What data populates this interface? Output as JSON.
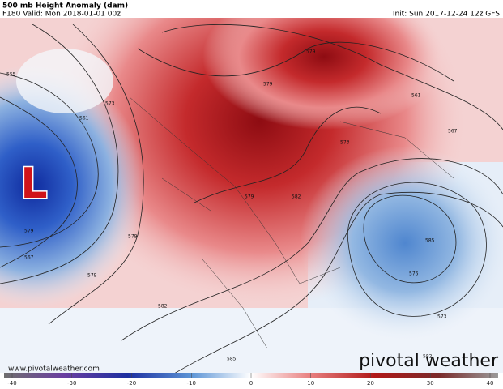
{
  "header": {
    "title": "500 mb Height Anomaly (dam)",
    "valid": "F180 Valid: Mon 2018-01-01 00z",
    "init": "Init: Sun 2017-12-24 12z GFS"
  },
  "map": {
    "low_marker": "L",
    "contour_labels": [
      "555",
      "561",
      "573",
      "579",
      "579",
      "573",
      "579",
      "582",
      "579",
      "579",
      "582",
      "585",
      "585",
      "576",
      "573",
      "579",
      "561",
      "567",
      "567",
      "582"
    ]
  },
  "colorbar": {
    "ticks": [
      -40,
      -30,
      -20,
      -10,
      0,
      10,
      20,
      30,
      40
    ]
  },
  "footer": {
    "url": "www.pivotalweather.com",
    "brand": "pivotal weather"
  }
}
